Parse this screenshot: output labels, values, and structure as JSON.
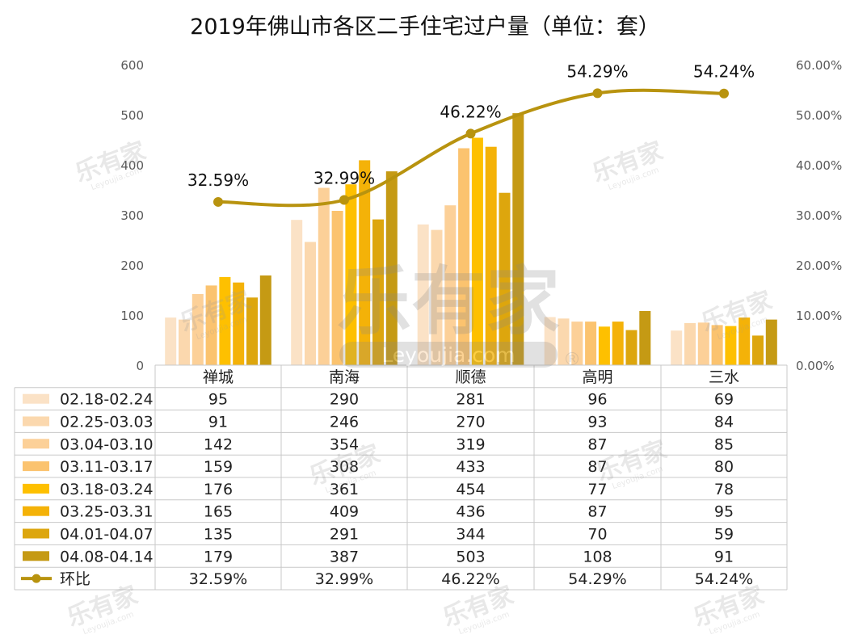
{
  "chart_data": {
    "type": "bar",
    "title": "2019年佛山市各区二手住宅过户量（单位：套）",
    "categories": [
      "禅城",
      "南海",
      "顺德",
      "高明",
      "三水"
    ],
    "y_left": {
      "range": [
        0,
        600
      ],
      "ticks": [
        "0",
        "100",
        "200",
        "300",
        "400",
        "500",
        "600"
      ]
    },
    "y_right": {
      "range": [
        0,
        0.6
      ],
      "ticks": [
        "0.00%",
        "10.00%",
        "20.00%",
        "30.00%",
        "40.00%",
        "50.00%",
        "60.00%"
      ]
    },
    "series": [
      {
        "name": "02.18-02.24",
        "color": "#fbe2c6",
        "values": [
          95,
          290,
          281,
          96,
          69
        ]
      },
      {
        "name": "02.25-03.03",
        "color": "#fbd8ae",
        "values": [
          91,
          246,
          270,
          93,
          84
        ]
      },
      {
        "name": "03.04-03.10",
        "color": "#fcd098",
        "values": [
          142,
          354,
          319,
          87,
          85
        ]
      },
      {
        "name": "03.11-03.17",
        "color": "#fbc36f",
        "values": [
          159,
          308,
          433,
          87,
          80
        ]
      },
      {
        "name": "03.18-03.24",
        "color": "#fec000",
        "values": [
          176,
          361,
          454,
          77,
          78
        ]
      },
      {
        "name": "03.25-03.31",
        "color": "#f4b208",
        "values": [
          165,
          409,
          436,
          87,
          95
        ]
      },
      {
        "name": "04.01-04.07",
        "color": "#dda60d",
        "values": [
          135,
          291,
          344,
          70,
          59
        ]
      },
      {
        "name": "04.08-04.14",
        "color": "#c59a14",
        "values": [
          179,
          387,
          503,
          108,
          91
        ]
      }
    ],
    "line_series": {
      "name": "环比",
      "color": "#b8930f",
      "values": [
        0.3259,
        0.3299,
        0.4622,
        0.5429,
        0.5424
      ],
      "labels": [
        "32.59%",
        "32.99%",
        "46.22%",
        "54.29%",
        "54.24%"
      ]
    },
    "watermark": {
      "brand": "乐有家",
      "domain": "Leyoujia.com",
      "mark": "®"
    }
  }
}
